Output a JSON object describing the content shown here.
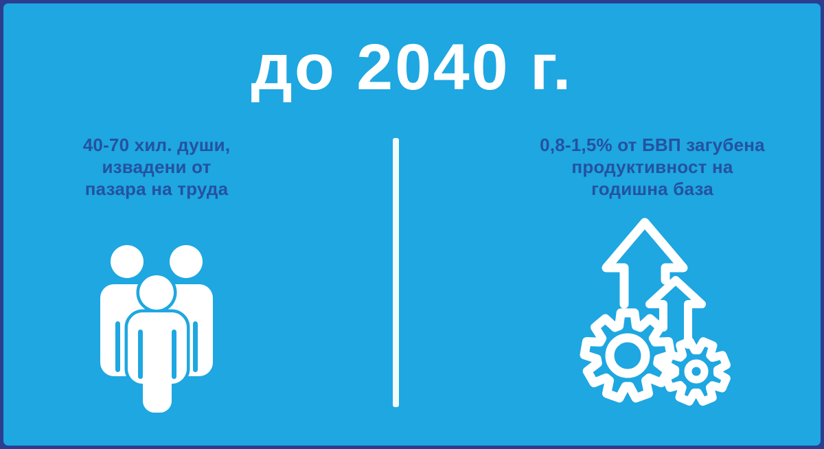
{
  "title": "до 2040 г.",
  "left_panel": {
    "icon": "people-group-icon",
    "lines": [
      "40-70 хил. души,",
      "извадени от",
      "пазара на труда"
    ]
  },
  "right_panel": {
    "icon": "gears-growth-arrows-icon",
    "lines": [
      "0,8-1,5% от БВП загубена",
      "продуктивност на",
      "годишна база"
    ]
  },
  "colors": {
    "background": "#1EA7E1",
    "border": "#2B3E8F",
    "caption_text": "#2452A0",
    "title_text": "#FFFFFF",
    "icon": "#FFFFFF",
    "divider": "#F2FBFD"
  }
}
